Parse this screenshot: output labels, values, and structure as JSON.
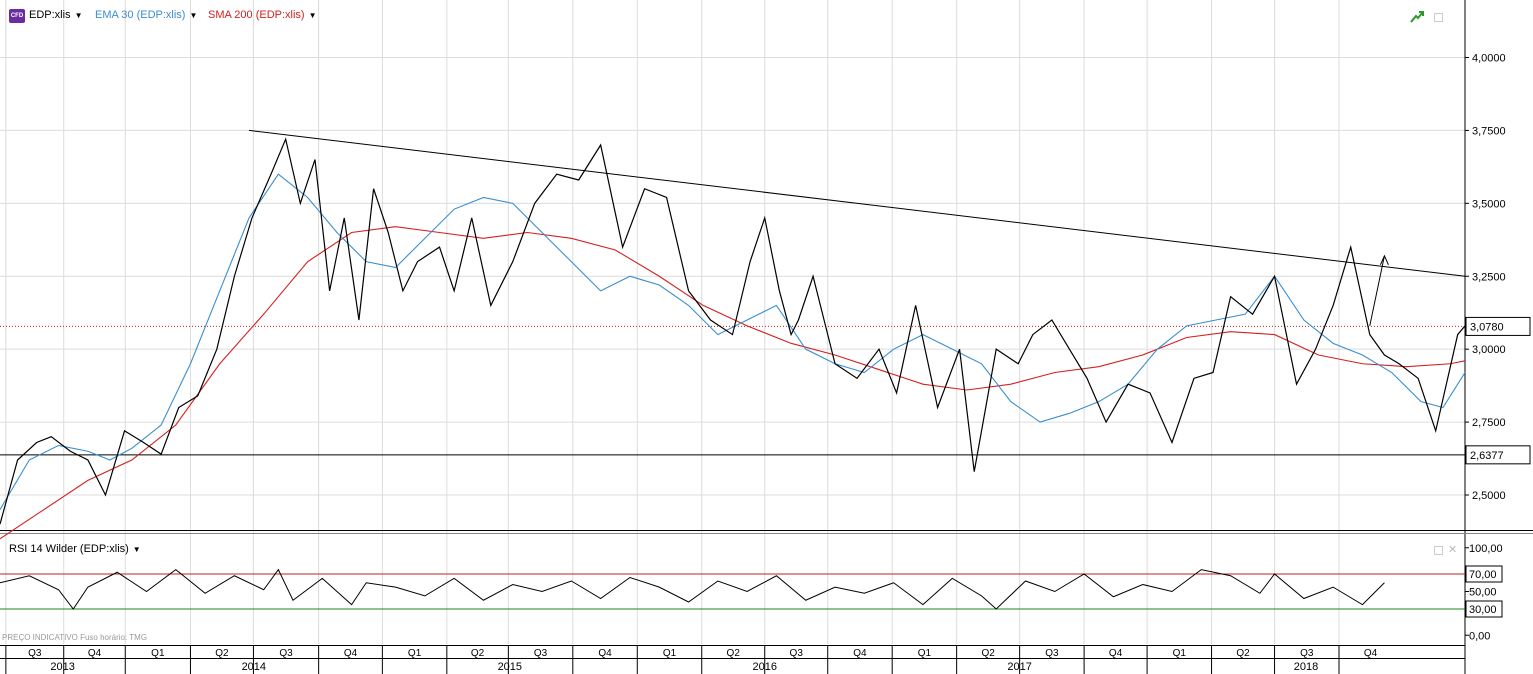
{
  "legend": {
    "badge": "CFD",
    "symbol": "EDP:xlis",
    "ema": "EMA 30 (EDP:xlis)",
    "sma": "SMA 200 (EDP:xlis)"
  },
  "rsi_panel": {
    "title": "RSI 14 Wilder (EDP:xlis)"
  },
  "footer": {
    "note": "PREÇO INDICATIVO   Fuso horário: TMG"
  },
  "colors": {
    "price": "#000000",
    "ema": "#3a8ed0",
    "sma": "#d42020",
    "rsi_upper": "#c02020",
    "rsi_lower": "#1a8a1a"
  },
  "chart_data": [
    {
      "type": "line",
      "title": "",
      "ylim": [
        2.38,
        4.18
      ],
      "yticks": [
        "4,0000",
        "3,7500",
        "3,5000",
        "3,2500",
        "3,0000",
        "2,7500",
        "2,5000"
      ],
      "ytick_values": [
        4.0,
        3.75,
        3.5,
        3.25,
        3.0,
        2.75,
        2.5
      ],
      "xlim": [
        0,
        1000
      ],
      "series": [
        {
          "role": "price",
          "x": [
            0,
            12,
            25,
            35,
            48,
            60,
            72,
            85,
            98,
            110,
            122,
            135,
            148,
            160,
            172,
            185,
            195,
            205,
            215,
            225,
            235,
            245,
            255,
            265,
            275,
            285,
            300,
            310,
            322,
            335,
            350,
            365,
            380,
            395,
            410,
            425,
            440,
            455,
            470,
            485,
            500,
            512,
            522,
            532,
            540,
            545,
            555,
            570,
            585,
            600,
            612,
            625,
            640,
            655,
            665,
            680,
            695,
            705,
            718,
            730,
            742,
            755,
            770,
            785,
            800,
            815,
            828,
            840,
            855,
            870,
            885,
            898,
            910,
            922,
            935,
            945,
            955,
            968,
            980,
            995,
            1000
          ],
          "y": [
            2.4,
            2.62,
            2.68,
            2.7,
            2.65,
            2.62,
            2.5,
            2.72,
            2.68,
            2.64,
            2.8,
            2.84,
            3.0,
            3.25,
            3.45,
            3.6,
            3.72,
            3.5,
            3.65,
            3.2,
            3.45,
            3.1,
            3.55,
            3.4,
            3.2,
            3.3,
            3.35,
            3.2,
            3.45,
            3.15,
            3.3,
            3.5,
            3.6,
            3.58,
            3.7,
            3.35,
            3.55,
            3.52,
            3.2,
            3.1,
            3.05,
            3.3,
            3.45,
            3.2,
            3.05,
            3.1,
            3.25,
            2.95,
            2.9,
            3.0,
            2.85,
            3.15,
            2.8,
            3.0,
            2.58,
            3.0,
            2.95,
            3.05,
            3.1,
            3.0,
            2.9,
            2.75,
            2.88,
            2.85,
            2.68,
            2.9,
            2.92,
            3.18,
            3.12,
            3.25,
            2.88,
            3.0,
            3.15,
            3.35,
            3.05,
            2.98,
            2.95,
            2.9,
            2.72,
            3.05,
            3.08
          ]
        },
        {
          "role": "ema",
          "x": [
            0,
            20,
            40,
            60,
            75,
            90,
            110,
            130,
            150,
            170,
            190,
            210,
            230,
            250,
            270,
            290,
            310,
            330,
            350,
            370,
            390,
            410,
            430,
            450,
            470,
            490,
            510,
            530,
            550,
            570,
            590,
            610,
            630,
            650,
            670,
            690,
            710,
            730,
            750,
            770,
            790,
            810,
            830,
            850,
            870,
            890,
            910,
            930,
            950,
            970,
            985,
            1000
          ],
          "y": [
            2.45,
            2.62,
            2.67,
            2.65,
            2.62,
            2.66,
            2.74,
            2.95,
            3.2,
            3.45,
            3.6,
            3.52,
            3.4,
            3.3,
            3.28,
            3.38,
            3.48,
            3.52,
            3.5,
            3.4,
            3.3,
            3.2,
            3.25,
            3.22,
            3.15,
            3.05,
            3.1,
            3.15,
            3.0,
            2.95,
            2.92,
            3.0,
            3.05,
            3.0,
            2.95,
            2.82,
            2.75,
            2.78,
            2.82,
            2.88,
            3.0,
            3.08,
            3.1,
            3.12,
            3.25,
            3.1,
            3.02,
            2.98,
            2.92,
            2.82,
            2.8,
            2.92
          ]
        },
        {
          "role": "sma",
          "x": [
            0,
            30,
            60,
            90,
            120,
            150,
            180,
            210,
            240,
            270,
            300,
            330,
            360,
            390,
            420,
            450,
            480,
            510,
            540,
            570,
            600,
            630,
            660,
            690,
            720,
            750,
            780,
            810,
            840,
            870,
            900,
            930,
            960,
            990,
            1000
          ],
          "y": [
            2.35,
            2.45,
            2.55,
            2.62,
            2.74,
            2.95,
            3.12,
            3.3,
            3.4,
            3.42,
            3.4,
            3.38,
            3.4,
            3.38,
            3.34,
            3.25,
            3.15,
            3.08,
            3.02,
            2.98,
            2.93,
            2.88,
            2.86,
            2.88,
            2.92,
            2.94,
            2.98,
            3.04,
            3.06,
            3.05,
            2.98,
            2.95,
            2.94,
            2.95,
            2.96
          ]
        }
      ],
      "trendline": {
        "x": [
          170,
          1000
        ],
        "y": [
          3.75,
          3.25
        ]
      },
      "arrow": {
        "x": [
          935,
          945
        ],
        "y": [
          3.08,
          3.32
        ]
      },
      "horizontal_levels": [
        {
          "value": 3.078,
          "label": "3,0780",
          "style": "dotted"
        },
        {
          "value": 2.6377,
          "label": "2,6377",
          "style": "solid"
        }
      ]
    },
    {
      "type": "line",
      "title": "",
      "ylim": [
        -10,
        110
      ],
      "yticks": [
        "100,00",
        "70,00",
        "50,00",
        "30,00",
        "0,00"
      ],
      "ytick_values": [
        100,
        70,
        50,
        30,
        0
      ],
      "series": [
        {
          "role": "rsi",
          "x": [
            0,
            20,
            40,
            50,
            60,
            80,
            100,
            120,
            140,
            160,
            180,
            190,
            200,
            220,
            240,
            250,
            270,
            290,
            310,
            330,
            350,
            370,
            390,
            410,
            430,
            450,
            470,
            490,
            510,
            530,
            550,
            570,
            590,
            610,
            630,
            650,
            670,
            680,
            700,
            720,
            740,
            760,
            780,
            800,
            820,
            840,
            860,
            870,
            890,
            910,
            930,
            945
          ],
          "y": [
            60,
            68,
            52,
            30,
            55,
            72,
            50,
            75,
            48,
            68,
            52,
            75,
            40,
            65,
            35,
            60,
            55,
            45,
            65,
            40,
            58,
            50,
            62,
            42,
            66,
            55,
            38,
            62,
            50,
            68,
            40,
            55,
            48,
            60,
            35,
            65,
            45,
            30,
            62,
            50,
            70,
            44,
            58,
            50,
            75,
            68,
            48,
            70,
            42,
            55,
            35,
            60
          ]
        }
      ],
      "reference_levels": [
        70,
        30
      ]
    }
  ],
  "x_axis": {
    "quarters": [
      {
        "label": "Q3",
        "pos": 0.004
      },
      {
        "label": "Q4",
        "pos": 0.0435
      },
      {
        "label": "Q1",
        "pos": 0.0855
      },
      {
        "label": "Q2",
        "pos": 0.13
      },
      {
        "label": "Q3",
        "pos": 0.173
      },
      {
        "label": "Q4",
        "pos": 0.2175
      },
      {
        "label": "Q1",
        "pos": 0.261
      },
      {
        "label": "Q2",
        "pos": 0.305
      },
      {
        "label": "Q3",
        "pos": 0.347
      },
      {
        "label": "Q4",
        "pos": 0.391
      },
      {
        "label": "Q1",
        "pos": 0.435
      },
      {
        "label": "Q2",
        "pos": 0.479
      },
      {
        "label": "Q3",
        "pos": 0.522
      },
      {
        "label": "Q4",
        "pos": 0.565
      },
      {
        "label": "Q1",
        "pos": 0.609
      },
      {
        "label": "Q2",
        "pos": 0.653
      },
      {
        "label": "Q3",
        "pos": 0.696
      },
      {
        "label": "Q4",
        "pos": 0.74
      },
      {
        "label": "Q1",
        "pos": 0.783
      },
      {
        "label": "Q2",
        "pos": 0.827
      },
      {
        "label": "Q3",
        "pos": 0.87
      },
      {
        "label": "Q4",
        "pos": 0.914
      }
    ],
    "years": [
      {
        "label": "2013",
        "pos": 0.0
      },
      {
        "label": "2014",
        "pos": 0.0855
      },
      {
        "label": "2015",
        "pos": 0.261
      },
      {
        "label": "2016",
        "pos": 0.435
      },
      {
        "label": "2017",
        "pos": 0.609
      },
      {
        "label": "2018",
        "pos": 0.783
      }
    ],
    "end_pos": 0.957
  }
}
